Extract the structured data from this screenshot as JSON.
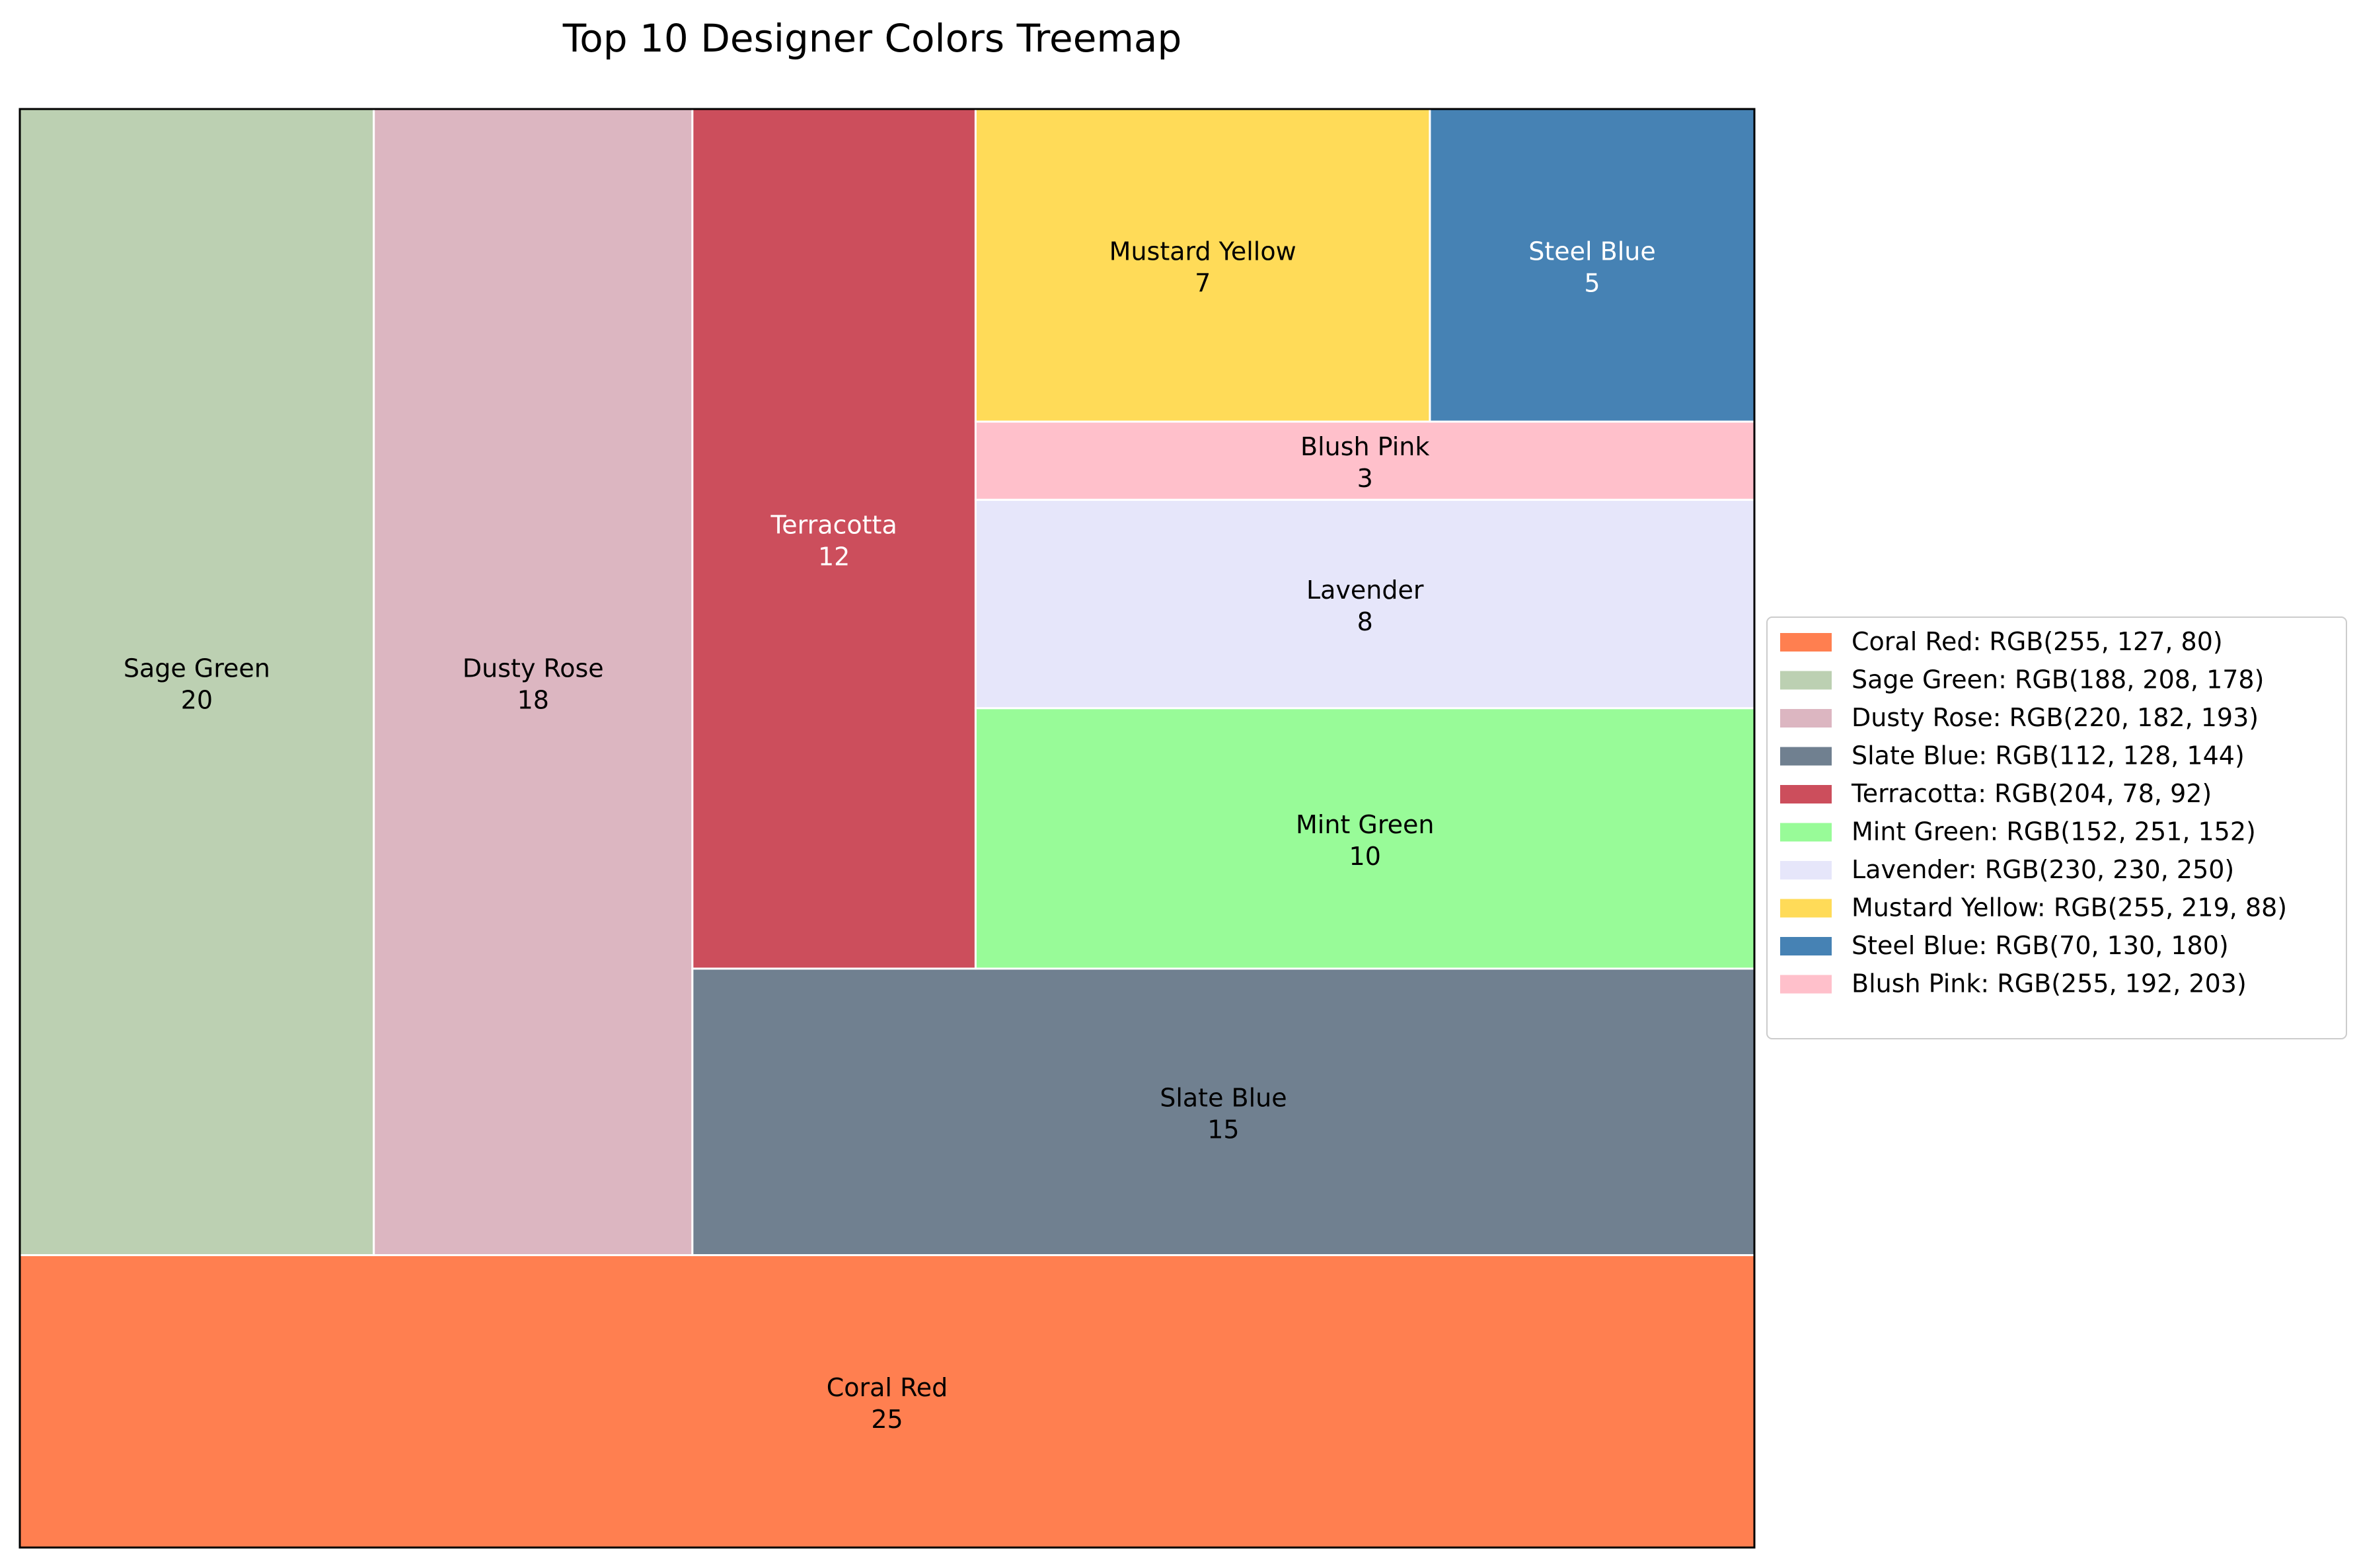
{
  "chart_data": {
    "type": "treemap",
    "title": "Top 10 Designer Colors Treemap",
    "legend_position": "center-right",
    "items": [
      {
        "name": "Coral Red",
        "value": 25,
        "rgb": "RGB(255, 127, 80)",
        "color": "#ff7f50",
        "label_color": "#000000"
      },
      {
        "name": "Sage Green",
        "value": 20,
        "rgb": "RGB(188, 208, 178)",
        "color": "#bcd0b2",
        "label_color": "#000000"
      },
      {
        "name": "Dusty Rose",
        "value": 18,
        "rgb": "RGB(220, 182, 193)",
        "color": "#dcb6c1",
        "label_color": "#000000"
      },
      {
        "name": "Slate Blue",
        "value": 15,
        "rgb": "RGB(112, 128, 144)",
        "color": "#708090",
        "label_color": "#000000"
      },
      {
        "name": "Terracotta",
        "value": 12,
        "rgb": "RGB(204, 78, 92)",
        "color": "#cc4e5c",
        "label_color": "#ffffff"
      },
      {
        "name": "Mint Green",
        "value": 10,
        "rgb": "RGB(152, 251, 152)",
        "color": "#98fb98",
        "label_color": "#000000"
      },
      {
        "name": "Lavender",
        "value": 8,
        "rgb": "RGB(230, 230, 250)",
        "color": "#e6e6fa",
        "label_color": "#000000"
      },
      {
        "name": "Mustard Yellow",
        "value": 7,
        "rgb": "RGB(255, 219, 88)",
        "color": "#ffdb58",
        "label_color": "#000000"
      },
      {
        "name": "Steel Blue",
        "value": 5,
        "rgb": "RGB(70, 130, 180)",
        "color": "#4682b4",
        "label_color": "#ffffff"
      },
      {
        "name": "Blush Pink",
        "value": 3,
        "rgb": "RGB(255, 192, 203)",
        "color": "#ffc0cb",
        "label_color": "#000000"
      }
    ]
  }
}
